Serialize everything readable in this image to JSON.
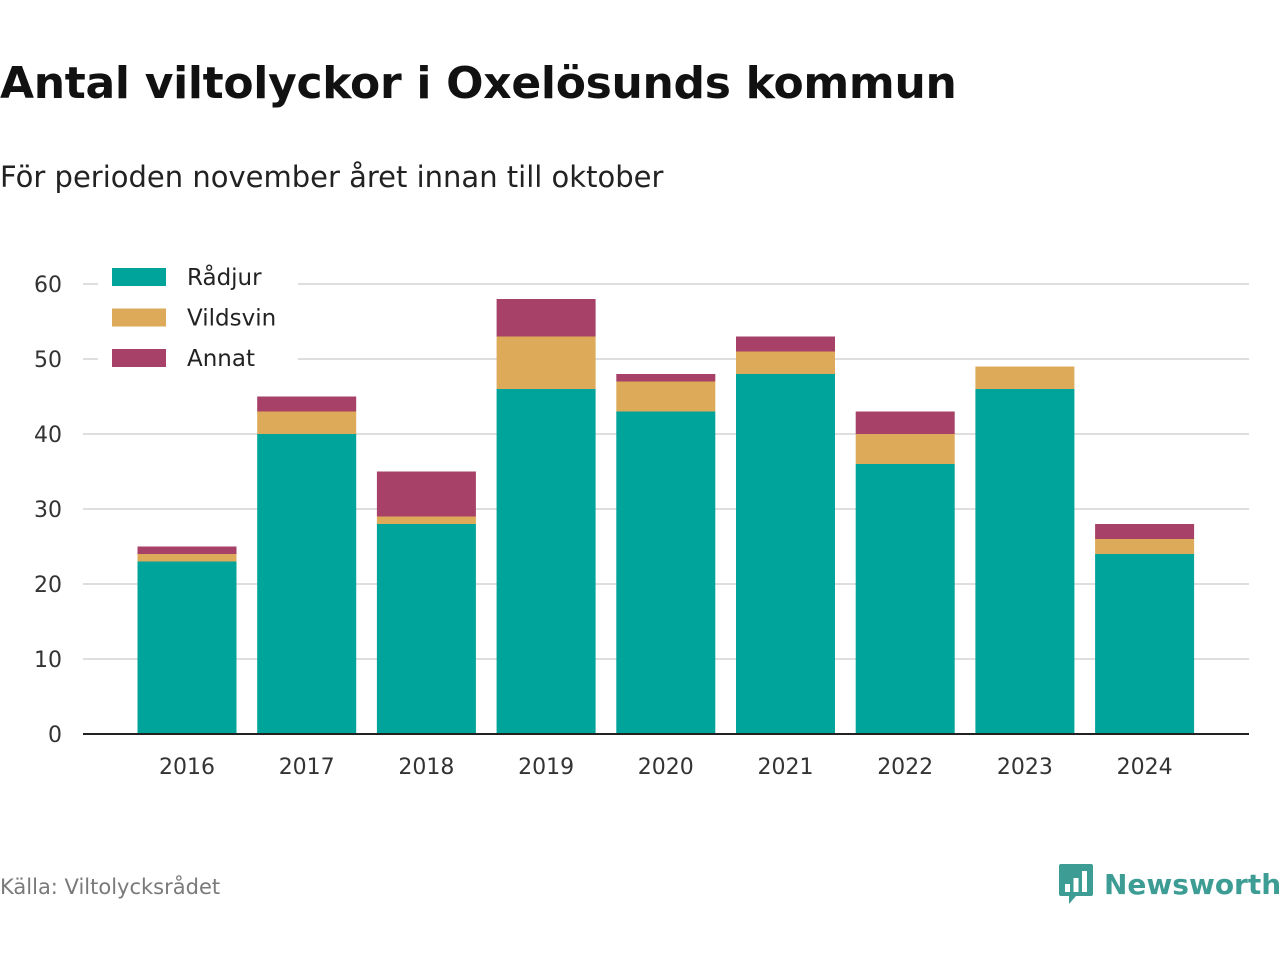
{
  "header": {
    "title": "Antal viltolyckor i Oxelösunds kommun",
    "subtitle": "För perioden november året innan till oktober"
  },
  "footer": {
    "source": "Källa: Viltolycksrådet",
    "brand": "Newsworthy",
    "brand_icon": "bar-chart-speech-bubble-icon"
  },
  "chart_data": {
    "type": "bar",
    "stacked": true,
    "categories": [
      "2016",
      "2017",
      "2018",
      "2019",
      "2020",
      "2021",
      "2022",
      "2023",
      "2024"
    ],
    "series": [
      {
        "name": "Rådjur",
        "color": "#00a49a",
        "values": [
          23,
          40,
          28,
          46,
          43,
          48,
          36,
          46,
          24
        ]
      },
      {
        "name": "Vildsvin",
        "color": "#dcaa58",
        "values": [
          1,
          3,
          1,
          7,
          4,
          3,
          4,
          3,
          2
        ]
      },
      {
        "name": "Annat",
        "color": "#a74167",
        "values": [
          1,
          2,
          6,
          5,
          1,
          2,
          3,
          0,
          2
        ]
      }
    ],
    "yticks": [
      0,
      10,
      20,
      30,
      40,
      50,
      60
    ],
    "ylim": [
      0,
      60
    ],
    "grid": true,
    "legend_position": "top-left"
  }
}
